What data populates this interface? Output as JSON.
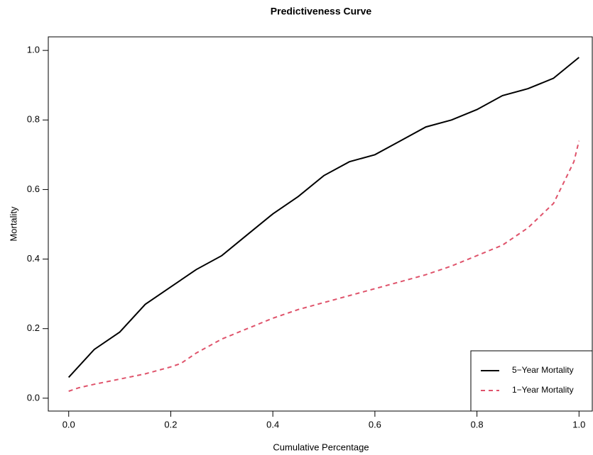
{
  "chart_data": {
    "type": "line",
    "title": "Predictiveness Curve",
    "x_label": "Cumulative Percentage",
    "y_label": "Mortality",
    "xlim": [
      -0.04,
      1.026
    ],
    "ylim": [
      -0.037,
      1.039
    ],
    "xticks": [
      {
        "value": 0,
        "label": "0.0"
      },
      0.2,
      0.4,
      0.6,
      0.8,
      {
        "value": 1,
        "label": "1.0"
      }
    ],
    "yticks": [
      {
        "value": 0,
        "label": "0.0"
      },
      0.2,
      0.4,
      0.6,
      0.8,
      {
        "value": 1,
        "label": "1.0"
      }
    ],
    "legend": "bottom-right",
    "series": [
      {
        "name": "5−Year Mortality",
        "color": "#000000",
        "dash": "solid",
        "x": [
          0,
          0.05,
          0.1,
          0.15,
          0.2,
          0.25,
          0.3,
          0.35,
          0.4,
          0.45,
          0.5,
          0.55,
          0.6,
          0.65,
          0.7,
          0.75,
          0.8,
          0.85,
          0.9,
          0.95,
          1.0
        ],
        "values": [
          0.06,
          0.14,
          0.19,
          0.27,
          0.32,
          0.37,
          0.41,
          0.47,
          0.53,
          0.58,
          0.64,
          0.68,
          0.7,
          0.74,
          0.78,
          0.8,
          0.83,
          0.87,
          0.89,
          0.92,
          0.98
        ]
      },
      {
        "name": "1−Year Mortality",
        "color": "#DF536B",
        "dash": "dashed",
        "x": [
          0,
          0.02,
          0.05,
          0.1,
          0.15,
          0.2,
          0.22,
          0.25,
          0.3,
          0.35,
          0.4,
          0.45,
          0.5,
          0.55,
          0.6,
          0.65,
          0.7,
          0.75,
          0.8,
          0.85,
          0.9,
          0.95,
          0.97,
          0.99,
          1.0
        ],
        "values": [
          0.02,
          0.03,
          0.04,
          0.055,
          0.07,
          0.09,
          0.1,
          0.13,
          0.17,
          0.2,
          0.23,
          0.255,
          0.275,
          0.295,
          0.315,
          0.335,
          0.355,
          0.38,
          0.41,
          0.44,
          0.49,
          0.56,
          0.62,
          0.68,
          0.74
        ]
      }
    ]
  }
}
